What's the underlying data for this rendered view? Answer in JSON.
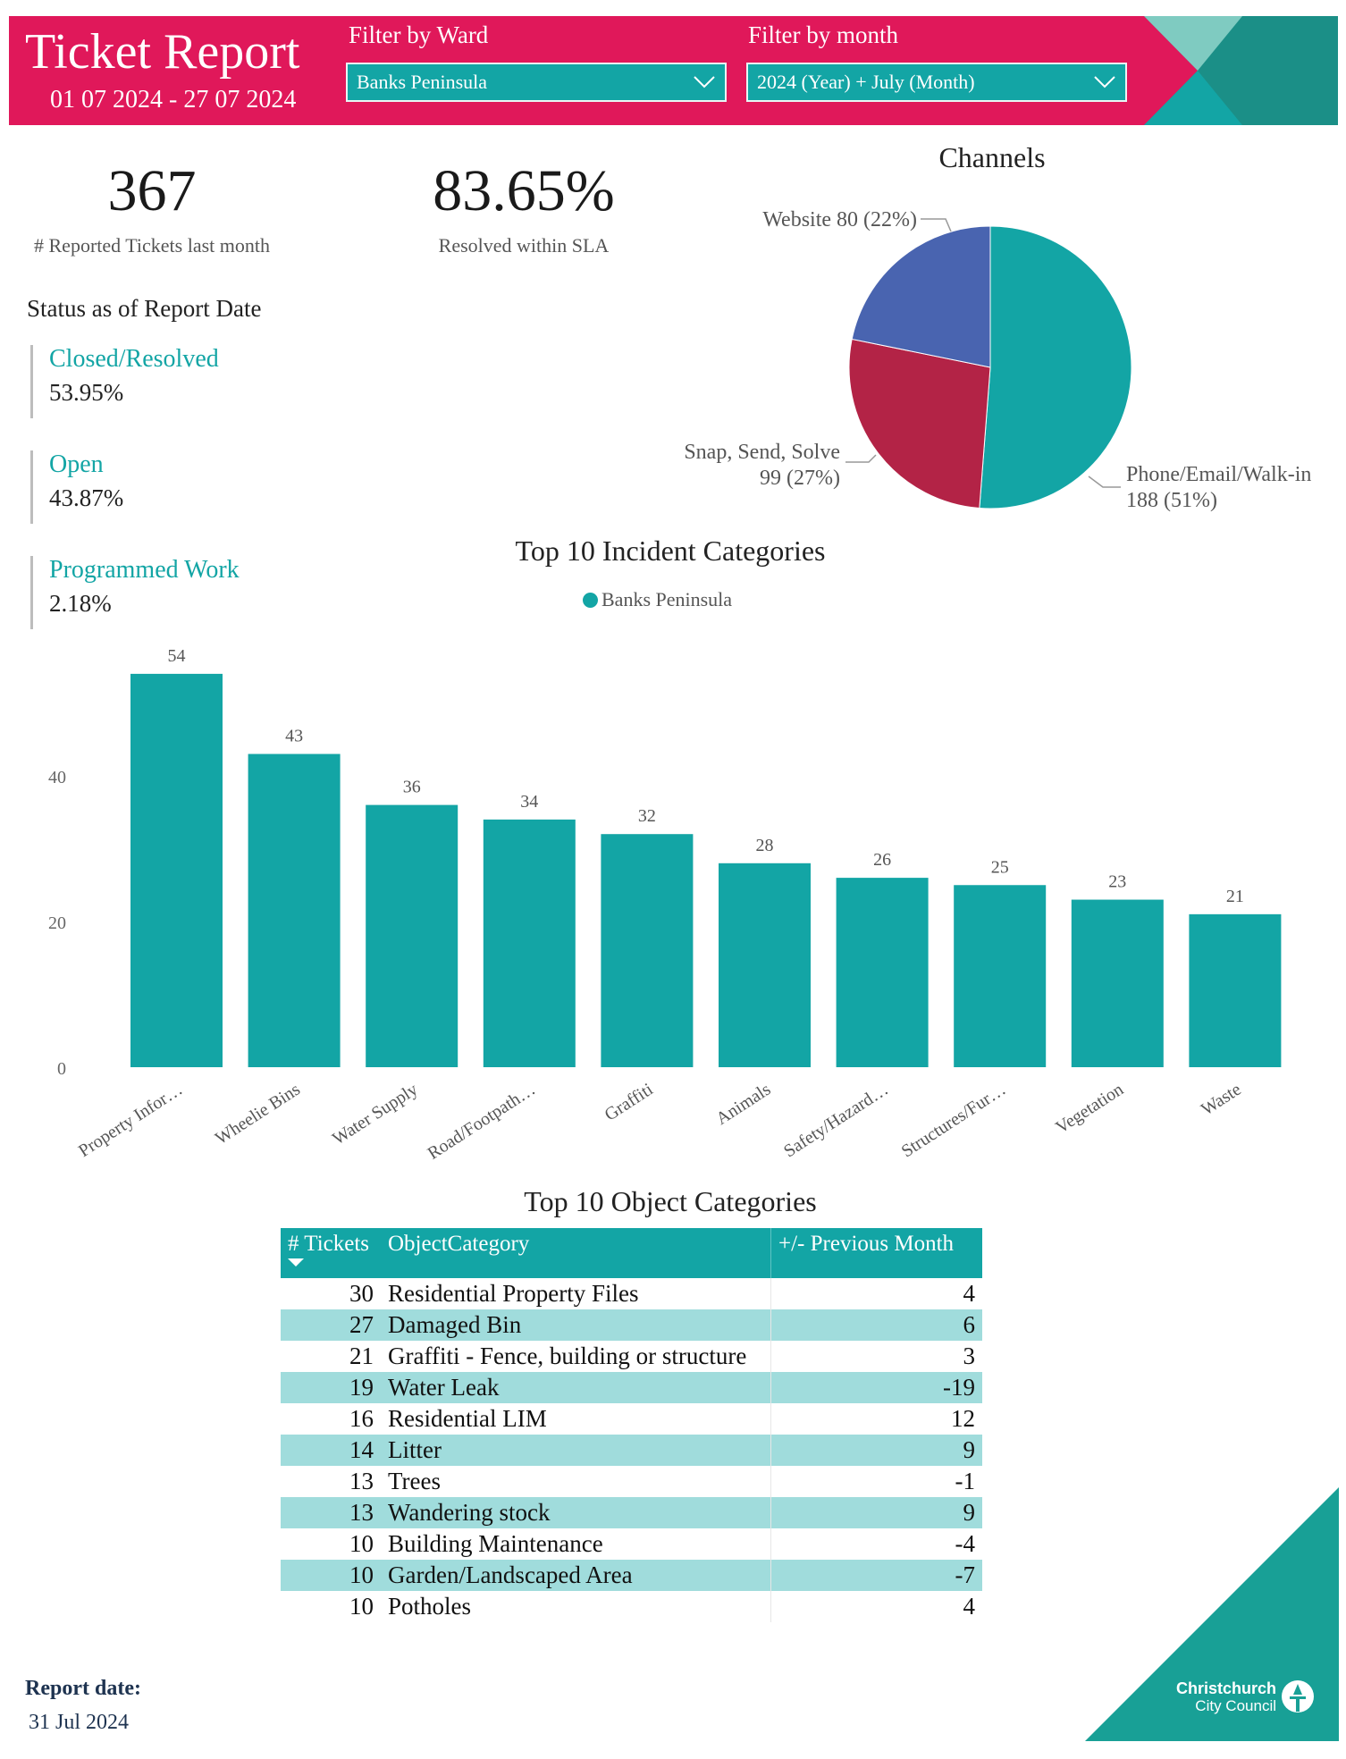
{
  "header": {
    "title": "Ticket Report",
    "date_range": "01 07 2024 - 27 07 2024",
    "ward_filter_label": "Filter by Ward",
    "ward_filter_value": "Banks Peninsula",
    "month_filter_label": "Filter by month",
    "month_filter_value": "2024 (Year) + July (Month)",
    "colors": {
      "brand": "#e0185a",
      "accent": "#13a5a5"
    }
  },
  "kpis": {
    "reported": {
      "value": "367",
      "label": "# Reported Tickets last month"
    },
    "sla": {
      "value": "83.65%",
      "label": "Resolved within SLA"
    }
  },
  "status": {
    "title": "Status as of Report Date",
    "items": [
      {
        "label": "Closed/Resolved",
        "value": "53.95%"
      },
      {
        "label": "Open",
        "value": "43.87%"
      },
      {
        "label": "Programmed Work",
        "value": "2.18%"
      }
    ]
  },
  "chart_data": [
    {
      "type": "pie",
      "title": "Channels",
      "slices": [
        {
          "name": "Phone/Email/Walk-in",
          "value": 188,
          "label_name": "Phone/Email/Walk-in",
          "label_value": "188 (51%)",
          "color": "#13a5a5"
        },
        {
          "name": "Snap, Send, Solve",
          "value": 99,
          "label_name": "Snap, Send, Solve",
          "label_value": "99 (27%)",
          "color": "#b32346"
        },
        {
          "name": "Website",
          "value": 80,
          "label_name": "Website 80 (22%)",
          "label_value": "",
          "color": "#4964b0"
        }
      ]
    },
    {
      "type": "bar",
      "title": "Top 10 Incident Categories",
      "legend": "Banks Peninsula",
      "series_color": "#13a5a5",
      "categories": [
        "Property Infor…",
        "Wheelie Bins",
        "Water Supply",
        "Road/Footpath…",
        "Graffiti",
        "Animals",
        "Safety/Hazard…",
        "Structures/Fur…",
        "Vegetation",
        "Waste"
      ],
      "values": [
        54,
        43,
        36,
        34,
        32,
        28,
        26,
        25,
        23,
        21
      ],
      "yticks": [
        "0",
        "20",
        "40"
      ],
      "ylim": [
        0,
        54
      ]
    }
  ],
  "object_table": {
    "title": "Top 10 Object Categories",
    "columns": [
      "# Tickets",
      "ObjectCategory",
      "+/- Previous Month"
    ],
    "rows": [
      {
        "tickets": "30",
        "category": "Residential Property Files",
        "change": "4"
      },
      {
        "tickets": "27",
        "category": "Damaged Bin",
        "change": "6"
      },
      {
        "tickets": "21",
        "category": "Graffiti - Fence, building or structure",
        "change": "3"
      },
      {
        "tickets": "19",
        "category": "Water Leak",
        "change": "-19"
      },
      {
        "tickets": "16",
        "category": "Residential LIM",
        "change": "12"
      },
      {
        "tickets": "14",
        "category": "Litter",
        "change": "9"
      },
      {
        "tickets": "13",
        "category": "Trees",
        "change": "-1"
      },
      {
        "tickets": "13",
        "category": "Wandering stock",
        "change": "9"
      },
      {
        "tickets": "10",
        "category": "Building Maintenance",
        "change": "-4"
      },
      {
        "tickets": "10",
        "category": "Garden/Landscaped Area",
        "change": "-7"
      },
      {
        "tickets": "10",
        "category": "Potholes",
        "change": "4"
      }
    ]
  },
  "footer": {
    "report_date_label": "Report date:",
    "report_date_value": "31 Jul 2024",
    "logo_line1": "Christchurch",
    "logo_line2": "City Council"
  }
}
